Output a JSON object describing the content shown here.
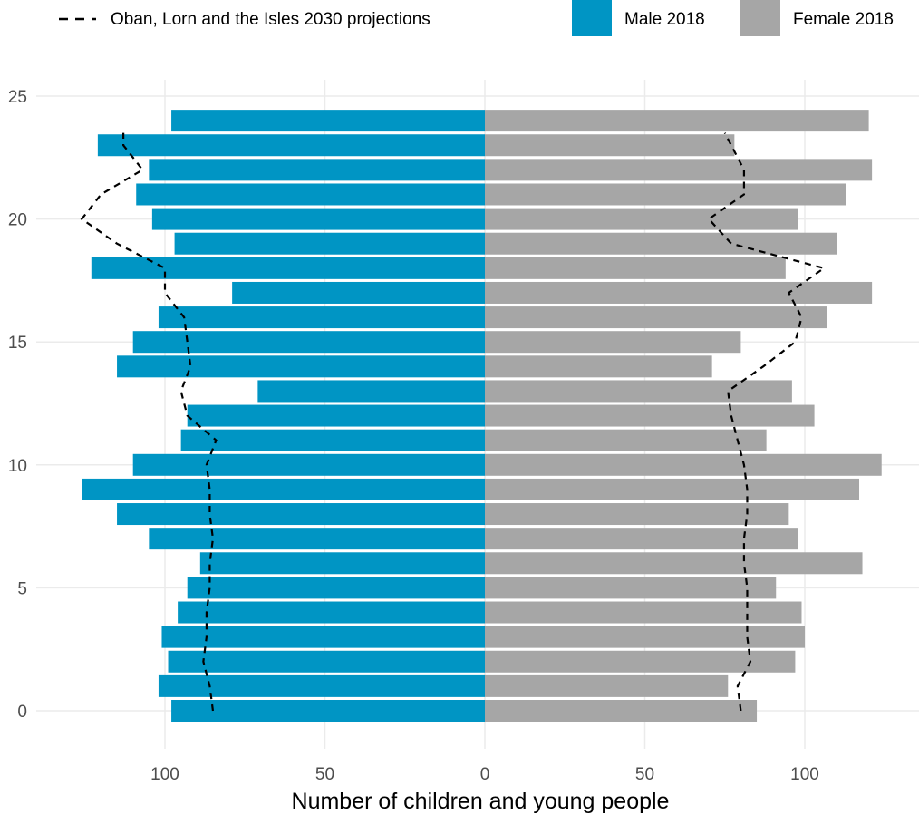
{
  "chart_data": {
    "type": "bar",
    "orientation": "horizontal",
    "layout": "population-pyramid",
    "xlabel": "Number of children and young people",
    "ylabel": "",
    "title": "",
    "ages": [
      0,
      1,
      2,
      3,
      4,
      5,
      6,
      7,
      8,
      9,
      10,
      11,
      12,
      13,
      14,
      15,
      16,
      17,
      18,
      19,
      20,
      21,
      22,
      23,
      24
    ],
    "y_ticks": [
      0,
      5,
      10,
      15,
      20,
      25
    ],
    "x_ticks": [
      {
        "value": -100,
        "label": "100"
      },
      {
        "value": -50,
        "label": "50"
      },
      {
        "value": 0,
        "label": "0"
      },
      {
        "value": 50,
        "label": "50"
      },
      {
        "value": 100,
        "label": "100"
      }
    ],
    "xlim": [
      -126,
      124
    ],
    "ylim": [
      -1,
      25.5
    ],
    "grid": true,
    "legend_position": "top",
    "series": [
      {
        "name": "Male 2018",
        "side": "left",
        "color": "#0095c4",
        "values": [
          98,
          102,
          99,
          101,
          96,
          93,
          89,
          105,
          115,
          126,
          110,
          95,
          93,
          71,
          115,
          110,
          102,
          79,
          123,
          97,
          104,
          109,
          105,
          121,
          98
        ]
      },
      {
        "name": "Female 2018",
        "side": "right",
        "color": "#a6a6a6",
        "values": [
          85,
          76,
          97,
          100,
          99,
          91,
          118,
          98,
          95,
          117,
          124,
          88,
          103,
          96,
          71,
          80,
          107,
          121,
          94,
          110,
          98,
          113,
          121,
          78,
          120
        ]
      }
    ],
    "projection": {
      "name": "Oban, Lorn and the Isles 2030 projections",
      "style": "dashed",
      "color": "#000000",
      "ages": [
        0,
        1,
        2,
        3,
        4,
        5,
        6,
        7,
        8,
        9,
        10,
        11,
        12,
        13,
        14,
        15,
        16,
        17,
        18,
        19,
        20,
        21,
        22,
        23,
        23.5
      ],
      "male": [
        85,
        86,
        88,
        87,
        87,
        86,
        86,
        85,
        86,
        86,
        87,
        84,
        93,
        95,
        92,
        93,
        94,
        100,
        100,
        115,
        126,
        120,
        107,
        113,
        113
      ],
      "female": [
        80,
        79,
        83,
        82,
        82,
        82,
        81,
        81,
        82,
        82,
        81,
        79,
        77,
        76,
        87,
        97,
        99,
        95,
        106,
        77,
        70,
        81,
        81,
        77,
        75
      ]
    }
  }
}
